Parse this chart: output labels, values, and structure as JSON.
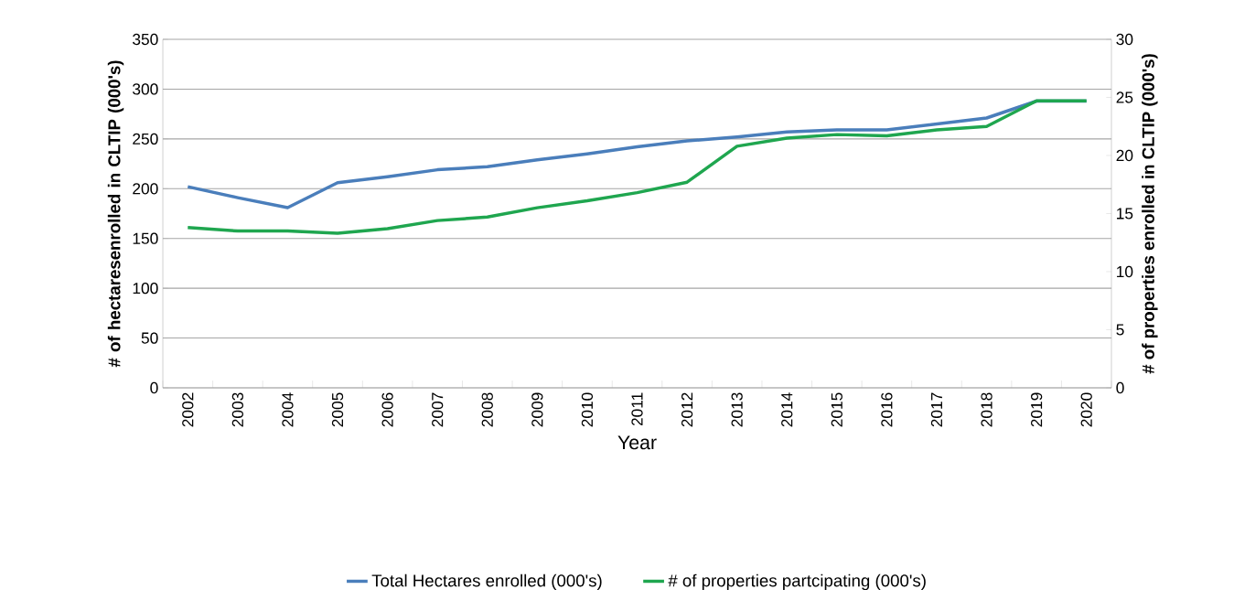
{
  "chart_data": {
    "type": "line",
    "xlabel": "Year",
    "ylabel": "# of hectaresenrolled in CLTIP (000's)",
    "y2label": "# of properties enrolled in CLTIP (000's)",
    "categories": [
      "2002",
      "2003",
      "2004",
      "2005",
      "2006",
      "2007",
      "2008",
      "2009",
      "2010",
      "2011",
      "2012",
      "2013",
      "2014",
      "2015",
      "2016",
      "2017",
      "2018",
      "2019",
      "2020"
    ],
    "series": [
      {
        "name": "Total Hectares enrolled (000's)",
        "color": "#4a7ebb",
        "values": [
          202,
          191,
          181,
          206,
          212,
          219,
          222,
          229,
          235,
          242,
          248,
          252,
          257,
          259,
          259,
          265,
          271,
          288,
          288
        ]
      },
      {
        "name": "# of properties partcipating (000's)",
        "color": "#1fa64f",
        "axis": "y2",
        "values": [
          13.8,
          13.5,
          13.5,
          13.3,
          13.7,
          14.4,
          14.7,
          15.5,
          16.1,
          16.8,
          17.7,
          20.8,
          21.5,
          21.8,
          21.7,
          22.2,
          22.5,
          24.7,
          24.7
        ]
      }
    ],
    "ylim": [
      0,
      350
    ],
    "yticks": [
      0,
      50,
      100,
      150,
      200,
      250,
      300,
      350
    ],
    "y2lim": [
      0,
      30
    ],
    "y2ticks": [
      0,
      5,
      10,
      15,
      20,
      25,
      30
    ],
    "grid": "y",
    "legend": "bottom"
  }
}
